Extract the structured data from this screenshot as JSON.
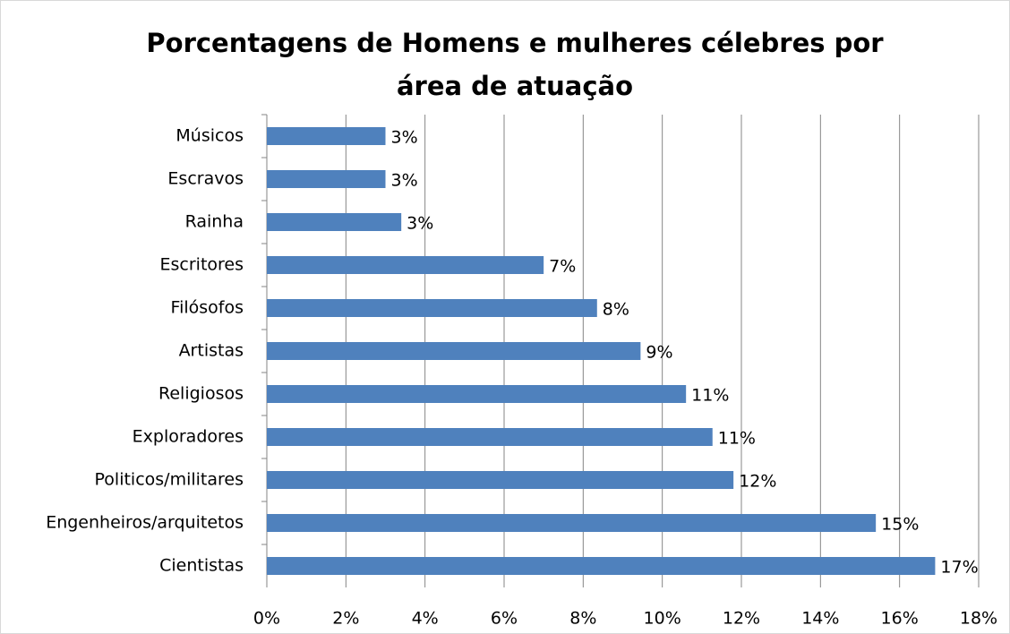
{
  "chart_data": {
    "type": "barh",
    "title": "Porcentagens de Homens e mulheres célebres por área de atuação",
    "categories": [
      "Músicos",
      "Escravos",
      "Rainha",
      "Escritores",
      "Filósofos",
      "Artistas",
      "Religiosos",
      "Exploradores",
      "Politicos/militares",
      "Engenheiros/arquitetos",
      "Cientistas"
    ],
    "values": [
      3.0,
      3.0,
      3.4,
      7.0,
      8.35,
      9.45,
      10.6,
      11.27,
      11.8,
      15.4,
      16.9
    ],
    "value_labels": [
      "3%",
      "3%",
      "3%",
      "7%",
      "8%",
      "9%",
      "11%",
      "11%",
      "12%",
      "15%",
      "17%"
    ],
    "color": "#4f81bd",
    "xlim": [
      0,
      18
    ],
    "xticks": [
      {
        "value": 0,
        "label": "0%"
      },
      {
        "value": 2,
        "label": "2%"
      },
      {
        "value": 4,
        "label": "4%"
      },
      {
        "value": 6,
        "label": "6%"
      },
      {
        "value": 8,
        "label": "8%"
      },
      {
        "value": 10,
        "label": "10%"
      },
      {
        "value": 12,
        "label": "12%"
      },
      {
        "value": 14,
        "label": "14%"
      },
      {
        "value": 16,
        "label": "16%"
      },
      {
        "value": 18,
        "label": "18%"
      }
    ],
    "grid": true
  }
}
